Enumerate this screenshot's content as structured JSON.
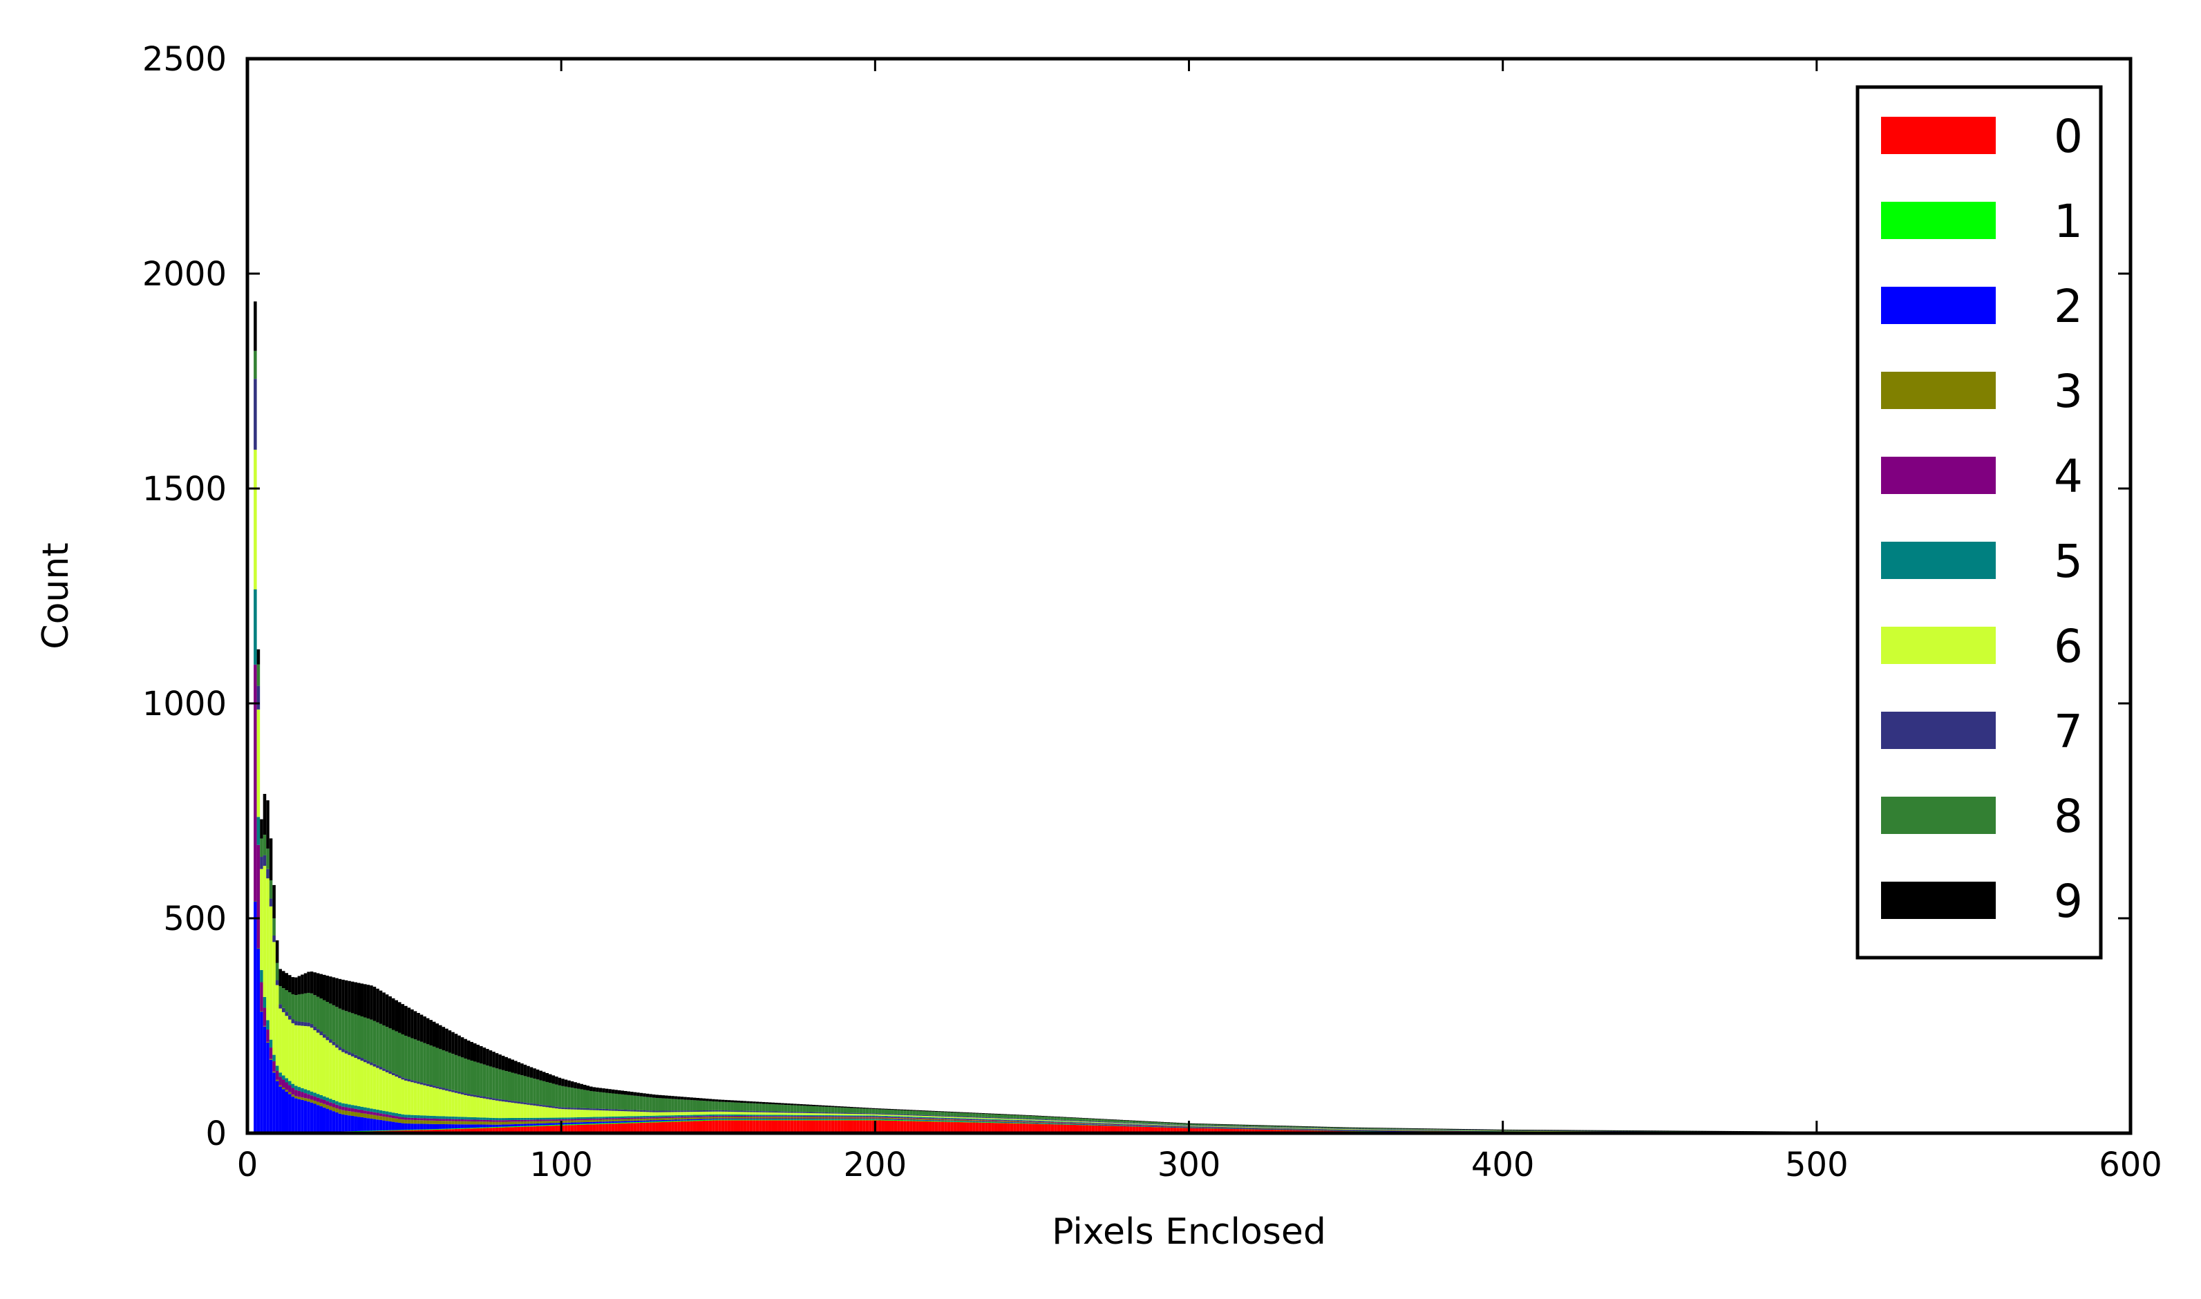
{
  "chart_data": {
    "type": "bar",
    "stacked": true,
    "histogram": true,
    "xlabel": "Pixels Enclosed",
    "ylabel": "Count",
    "xlim": [
      0,
      600
    ],
    "ylim": [
      0,
      2500
    ],
    "x_ticks": [
      0,
      100,
      200,
      300,
      400,
      500,
      600
    ],
    "y_ticks": [
      0,
      500,
      1000,
      1500,
      2000,
      2500
    ],
    "legend_position": "top-right",
    "grid": false,
    "series": [
      {
        "name": "0",
        "color": "#ff0000",
        "peaks": [
          [
            2,
            0
          ],
          [
            10,
            1
          ],
          [
            30,
            3
          ],
          [
            60,
            8
          ],
          [
            100,
            18
          ],
          [
            150,
            30
          ],
          [
            200,
            30
          ],
          [
            250,
            22
          ],
          [
            300,
            12
          ],
          [
            350,
            5
          ],
          [
            400,
            2
          ],
          [
            500,
            0.5
          ],
          [
            600,
            0
          ]
        ]
      },
      {
        "name": "1",
        "color": "#00ff00",
        "peaks": [
          [
            2,
            0
          ],
          [
            30,
            1
          ],
          [
            100,
            2
          ],
          [
            200,
            2
          ],
          [
            300,
            1
          ],
          [
            600,
            0
          ]
        ]
      },
      {
        "name": "2",
        "color": "#0000ff",
        "peaks": [
          [
            2,
            520
          ],
          [
            3,
            560
          ],
          [
            4,
            300
          ],
          [
            6,
            230
          ],
          [
            8,
            150
          ],
          [
            10,
            110
          ],
          [
            15,
            80
          ],
          [
            20,
            70
          ],
          [
            30,
            40
          ],
          [
            50,
            15
          ],
          [
            80,
            5
          ],
          [
            150,
            2
          ],
          [
            300,
            0.5
          ],
          [
            600,
            0
          ]
        ]
      },
      {
        "name": "3",
        "color": "#808000",
        "peaks": [
          [
            2,
            0
          ],
          [
            15,
            5
          ],
          [
            30,
            10
          ],
          [
            60,
            8
          ],
          [
            100,
            5
          ],
          [
            200,
            3
          ],
          [
            300,
            1
          ],
          [
            600,
            0
          ]
        ]
      },
      {
        "name": "4",
        "color": "#800080",
        "peaks": [
          [
            2,
            700
          ],
          [
            3,
            400
          ],
          [
            4,
            80
          ],
          [
            6,
            30
          ],
          [
            10,
            20
          ],
          [
            20,
            10
          ],
          [
            50,
            5
          ],
          [
            100,
            3
          ],
          [
            300,
            1
          ],
          [
            600,
            0
          ]
        ]
      },
      {
        "name": "5",
        "color": "#008080",
        "peaks": [
          [
            2,
            250
          ],
          [
            3,
            100
          ],
          [
            4,
            30
          ],
          [
            10,
            10
          ],
          [
            30,
            8
          ],
          [
            100,
            4
          ],
          [
            300,
            1
          ],
          [
            600,
            0
          ]
        ]
      },
      {
        "name": "6",
        "color": "#ccff33",
        "peaks": [
          [
            2,
            350
          ],
          [
            3,
            300
          ],
          [
            4,
            200
          ],
          [
            6,
            340
          ],
          [
            8,
            300
          ],
          [
            10,
            150
          ],
          [
            15,
            140
          ],
          [
            20,
            150
          ],
          [
            30,
            120
          ],
          [
            50,
            80
          ],
          [
            70,
            50
          ],
          [
            100,
            20
          ],
          [
            130,
            8
          ],
          [
            200,
            3
          ],
          [
            300,
            1
          ],
          [
            600,
            0
          ]
        ]
      },
      {
        "name": "7",
        "color": "#333380",
        "peaks": [
          [
            2,
            250
          ],
          [
            3,
            80
          ],
          [
            4,
            30
          ],
          [
            10,
            10
          ],
          [
            50,
            5
          ],
          [
            200,
            2
          ],
          [
            600,
            0
          ]
        ]
      },
      {
        "name": "8",
        "color": "#338033",
        "peaks": [
          [
            2,
            70
          ],
          [
            3,
            60
          ],
          [
            4,
            40
          ],
          [
            6,
            50
          ],
          [
            8,
            40
          ],
          [
            10,
            40
          ],
          [
            15,
            60
          ],
          [
            20,
            70
          ],
          [
            30,
            90
          ],
          [
            40,
            100
          ],
          [
            50,
            100
          ],
          [
            70,
            80
          ],
          [
            90,
            60
          ],
          [
            110,
            40
          ],
          [
            150,
            20
          ],
          [
            200,
            10
          ],
          [
            300,
            3
          ],
          [
            400,
            1
          ],
          [
            600,
            0
          ]
        ]
      },
      {
        "name": "9",
        "color": "#000000",
        "peaks": [
          [
            2,
            180
          ],
          [
            3,
            50
          ],
          [
            4,
            20
          ],
          [
            6,
            120
          ],
          [
            8,
            90
          ],
          [
            10,
            40
          ],
          [
            15,
            40
          ],
          [
            20,
            50
          ],
          [
            30,
            70
          ],
          [
            40,
            80
          ],
          [
            50,
            70
          ],
          [
            70,
            45
          ],
          [
            90,
            25
          ],
          [
            110,
            10
          ],
          [
            150,
            5
          ],
          [
            200,
            2
          ],
          [
            300,
            1
          ],
          [
            600,
            0
          ]
        ]
      }
    ]
  }
}
